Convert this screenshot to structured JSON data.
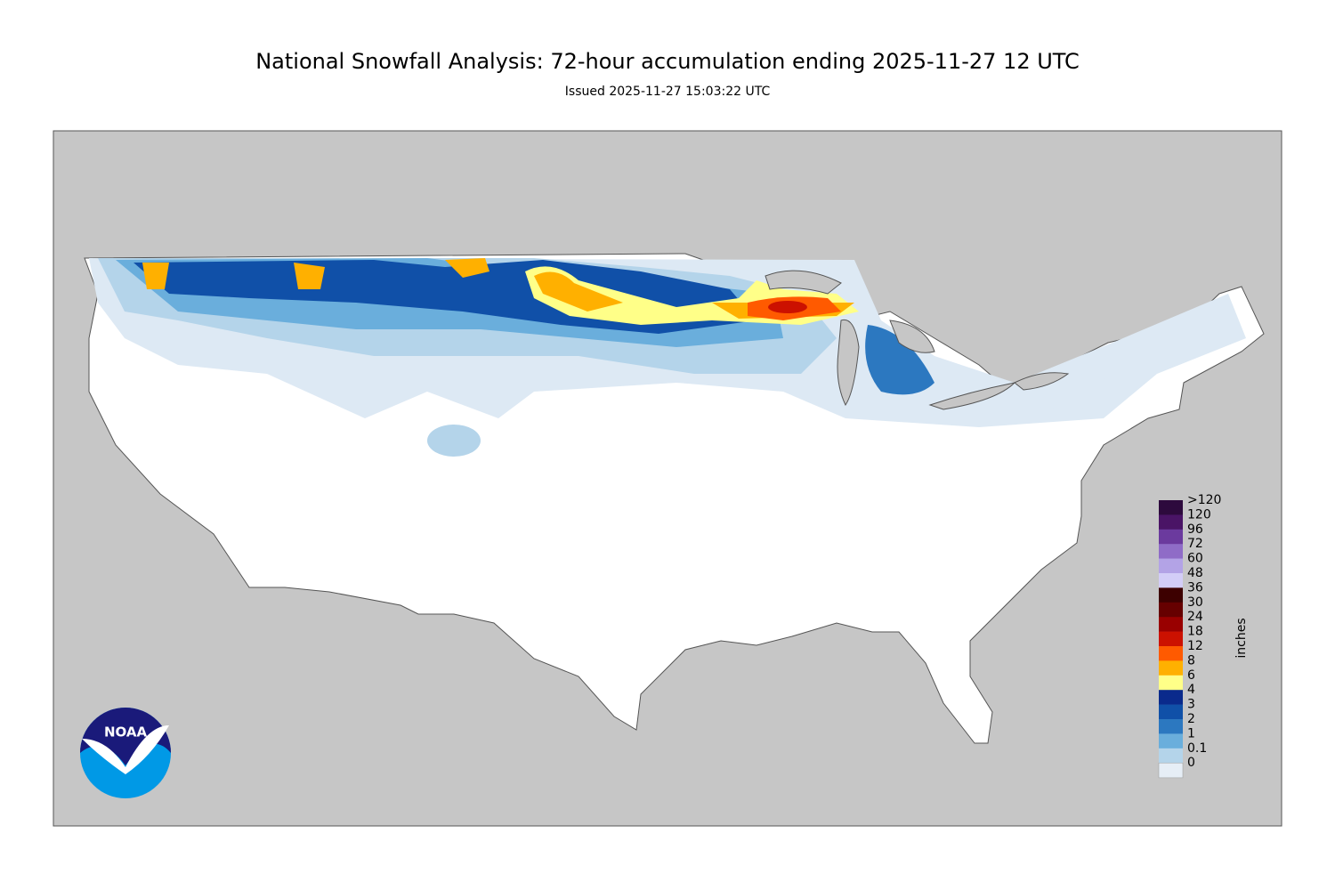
{
  "header": {
    "title": "National Snowfall Analysis: 72-hour accumulation ending 2025-11-27 12 UTC",
    "subtitle": "Issued 2025-11-27 15:03:22 UTC"
  },
  "legend": {
    "unit": "inches",
    "labels": [
      ">120",
      "120",
      "96",
      "72",
      "60",
      "48",
      "36",
      "30",
      "24",
      "18",
      "12",
      "8",
      "6",
      "4",
      "3",
      "2",
      "1",
      "0.1",
      "0"
    ],
    "colors": [
      "#2d0a3d",
      "#4a1466",
      "#6b3a9e",
      "#8f6cc7",
      "#b3a3e6",
      "#d3cdf7",
      "#3d0000",
      "#660000",
      "#990000",
      "#cc1100",
      "#ff5a00",
      "#ffb000",
      "#ffff88",
      "#0a2a8c",
      "#1050a8",
      "#2c78c0",
      "#6aaedc",
      "#b4d4ea",
      "#e6eef6"
    ]
  },
  "logo": {
    "text": "NOAA"
  }
}
